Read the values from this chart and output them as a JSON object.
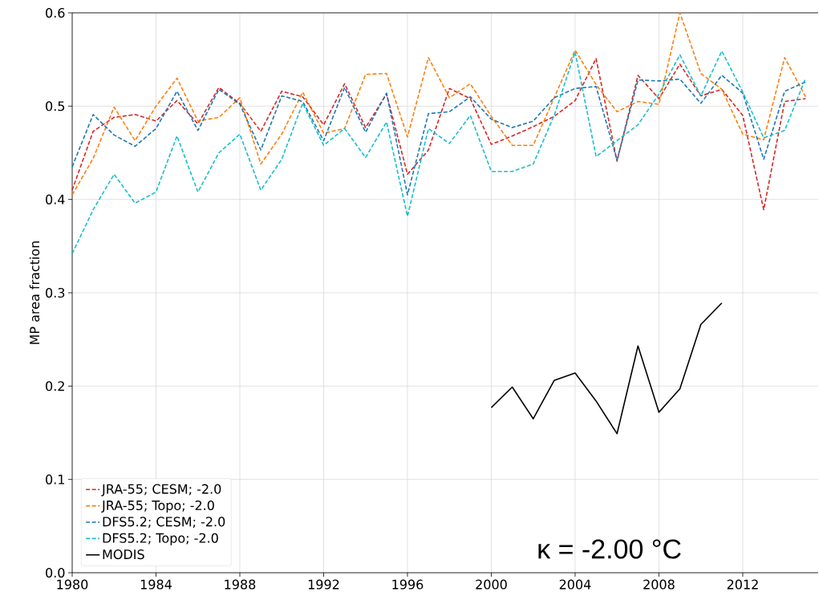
{
  "chart_data": {
    "type": "line",
    "ylabel": "MP area fraction",
    "x": [
      1980,
      1981,
      1982,
      1983,
      1984,
      1985,
      1986,
      1987,
      1988,
      1989,
      1990,
      1991,
      1992,
      1993,
      1994,
      1995,
      1996,
      1997,
      1998,
      1999,
      2000,
      2001,
      2002,
      2003,
      2004,
      2005,
      2006,
      2007,
      2008,
      2009,
      2010,
      2011,
      2012,
      2013,
      2014,
      2015
    ],
    "series": [
      {
        "name": "JRA-55; CESM; -2.0",
        "color": "#d62728",
        "line_style": "dashed",
        "values": [
          0.41,
          0.473,
          0.488,
          0.491,
          0.484,
          0.506,
          0.481,
          0.52,
          0.503,
          0.473,
          0.516,
          0.51,
          0.48,
          0.524,
          0.477,
          0.513,
          0.427,
          0.453,
          0.519,
          0.508,
          0.459,
          0.468,
          0.478,
          0.489,
          0.506,
          0.551,
          0.441,
          0.533,
          0.508,
          0.545,
          0.511,
          0.518,
          0.49,
          0.389,
          0.505,
          0.508
        ]
      },
      {
        "name": "JRA-55; Topo; -2.0",
        "color": "#ff7f0e",
        "line_style": "dashed",
        "values": [
          0.405,
          0.444,
          0.499,
          0.463,
          0.5,
          0.53,
          0.484,
          0.488,
          0.509,
          0.438,
          0.47,
          0.515,
          0.471,
          0.476,
          0.534,
          0.535,
          0.467,
          0.552,
          0.509,
          0.524,
          0.489,
          0.458,
          0.458,
          0.509,
          0.56,
          0.523,
          0.494,
          0.505,
          0.502,
          0.6,
          0.535,
          0.518,
          0.47,
          0.464,
          0.552,
          0.51
        ]
      },
      {
        "name": "DFS5.2; CESM; -2.0",
        "color": "#1f77b4",
        "line_style": "dashed",
        "values": [
          0.435,
          0.491,
          0.469,
          0.457,
          0.476,
          0.516,
          0.474,
          0.518,
          0.502,
          0.453,
          0.511,
          0.505,
          0.463,
          0.52,
          0.472,
          0.514,
          0.405,
          0.492,
          0.494,
          0.51,
          0.486,
          0.477,
          0.484,
          0.509,
          0.519,
          0.521,
          0.442,
          0.528,
          0.527,
          0.529,
          0.503,
          0.533,
          0.514,
          0.443,
          0.516,
          0.526
        ]
      },
      {
        "name": "DFS5.2; Topo; -2.0",
        "color": "#17becf",
        "line_style": "dashed",
        "values": [
          0.342,
          0.389,
          0.427,
          0.396,
          0.408,
          0.468,
          0.408,
          0.45,
          0.47,
          0.41,
          0.443,
          0.503,
          0.458,
          0.476,
          0.445,
          0.483,
          0.382,
          0.476,
          0.46,
          0.49,
          0.43,
          0.43,
          0.438,
          0.49,
          0.558,
          0.446,
          0.463,
          0.48,
          0.513,
          0.555,
          0.511,
          0.559,
          0.515,
          0.466,
          0.474,
          0.53
        ]
      },
      {
        "name": "MODIS",
        "color": "#000000",
        "line_style": "solid",
        "x": [
          2000,
          2001,
          2002,
          2003,
          2004,
          2005,
          2006,
          2007,
          2008,
          2009,
          2010,
          2011
        ],
        "values": [
          0.177,
          0.199,
          0.165,
          0.206,
          0.214,
          0.184,
          0.149,
          0.243,
          0.172,
          0.197,
          0.266,
          0.289
        ]
      }
    ],
    "xlim": [
      1980,
      2015.6
    ],
    "ylim": [
      0,
      0.6
    ],
    "xticks": [
      1980,
      1984,
      1988,
      1992,
      1996,
      2000,
      2004,
      2008,
      2012
    ],
    "yticks": [
      {
        "value": 0,
        "label": "0.0"
      },
      {
        "value": 0.1,
        "label": "0.1"
      },
      {
        "value": 0.2,
        "label": "0.2"
      },
      {
        "value": 0.3,
        "label": "0.3"
      },
      {
        "value": 0.4,
        "label": "0.4"
      },
      {
        "value": 0.5,
        "label": "0.5"
      },
      {
        "value": 0.6,
        "label": "0.6"
      }
    ],
    "grid": true,
    "legend": "bottom left",
    "annotations": [
      "κ = -2.00 °C"
    ]
  }
}
